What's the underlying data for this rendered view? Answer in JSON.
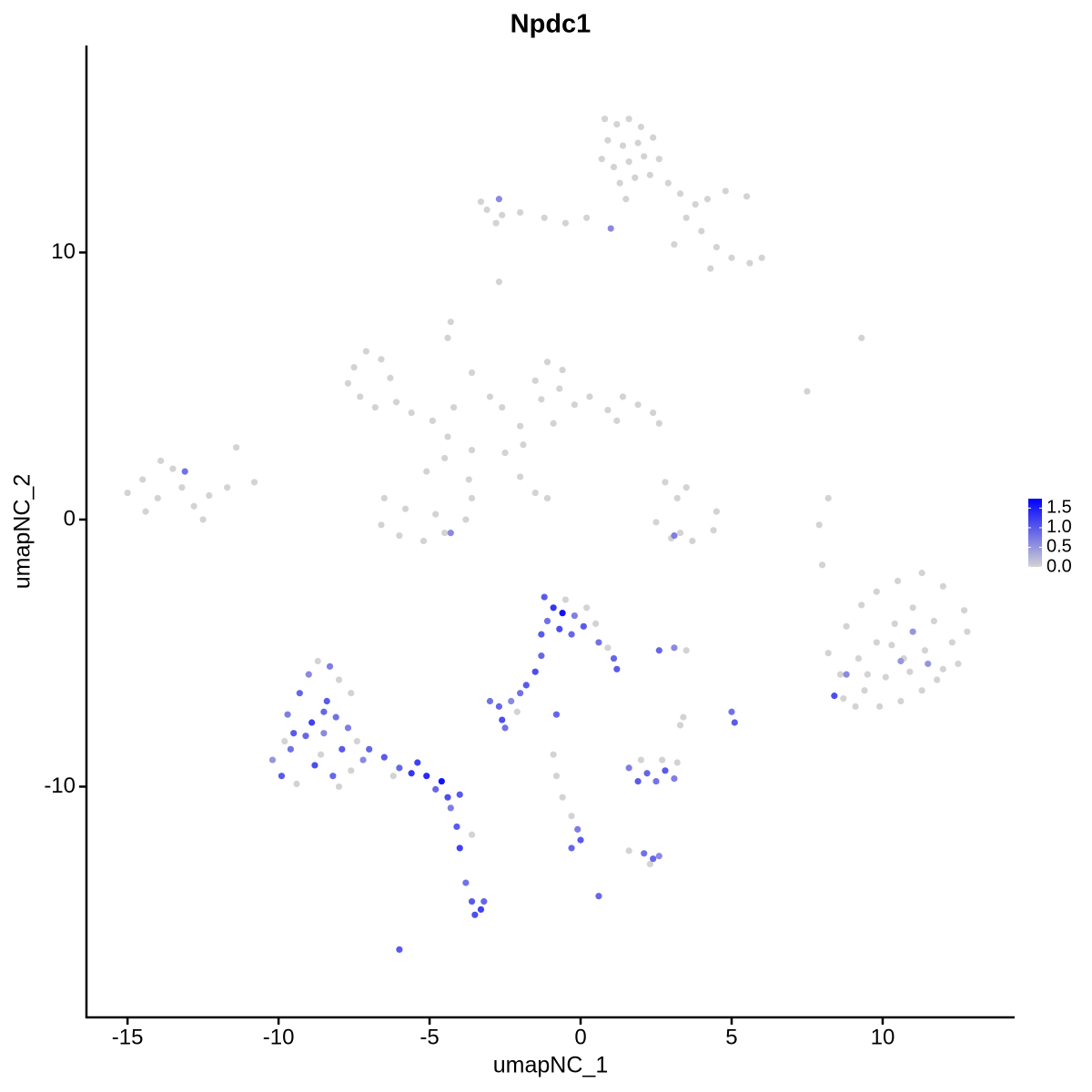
{
  "chart_data": {
    "type": "scatter",
    "title": "Npdc1",
    "x_label": "umapNC_1",
    "y_label": "umapNC_2",
    "xlim": [
      -16.36,
      14.37
    ],
    "ylim": [
      -18.64,
      17.75
    ],
    "xticks": [
      -15,
      -10,
      -5,
      0,
      5,
      10
    ],
    "yticks": [
      -10,
      0,
      10
    ],
    "colorbar": {
      "low_color": "#d3d3d3",
      "high_color": "#0000ff",
      "lim": [
        0,
        1.74
      ],
      "ticks": [
        {
          "value": 0,
          "label": "0.0"
        },
        {
          "value": 0.5,
          "label": "0.5"
        },
        {
          "value": 1,
          "label": "1.0"
        },
        {
          "value": 1.5,
          "label": "1.5"
        }
      ]
    },
    "x": [
      0.8,
      1.2,
      1.6,
      2.0,
      0.9,
      1.4,
      1.9,
      2.4,
      0.7,
      1.1,
      1.6,
      2.1,
      2.6,
      1.3,
      1.8,
      2.3,
      1.5,
      2.9,
      3.3,
      3.8,
      4.2,
      4.8,
      5.5,
      3.5,
      4.0,
      4.5,
      5.0,
      5.6,
      6.0,
      4.3,
      3.1,
      0.2,
      -0.5,
      -1.2,
      -2.0,
      -2.6,
      -3.1,
      -2.8,
      -2.7,
      -3.3,
      -2.7,
      1.0,
      -7.5,
      -7.1,
      -6.6,
      -7.7,
      -7.3,
      -6.8,
      -6.1,
      -6.3,
      -5.6,
      -4.9,
      -4.2,
      -4.4,
      -4.3,
      -3.6,
      -3.0,
      -2.6,
      -2.0,
      -1.5,
      -1.1,
      -0.6,
      -1.3,
      -0.7,
      -0.2,
      0.3,
      -0.9,
      0.9,
      1.4,
      1.9,
      2.4,
      2.6,
      1.2,
      -1.9,
      -2.5,
      -2.0,
      -1.5,
      -1.1,
      -3.6,
      -4.5,
      -5.1,
      -4.4,
      -6.5,
      -6.6,
      -6.0,
      -5.2,
      -4.5,
      -3.8,
      -3.6,
      -3.7,
      -5.8,
      -4.8,
      -4.3,
      2.5,
      3.0,
      3.7,
      4.4,
      4.5,
      3.3,
      3.2,
      3.5,
      2.8,
      3.1,
      -15.0,
      -14.5,
      -14.0,
      -13.5,
      -13.2,
      -12.8,
      -14.4,
      -13.9,
      -12.5,
      -12.3,
      -11.7,
      -11.4,
      -10.8,
      -13.1,
      9.3,
      7.5,
      8.2,
      7.9,
      8.0,
      8.2,
      8.8,
      9.3,
      9.8,
      10.5,
      11.3,
      12.0,
      12.7,
      8.6,
      9.2,
      9.8,
      10.4,
      11.0,
      11.7,
      12.3,
      12.8,
      8.7,
      9.4,
      10.1,
      10.7,
      11.4,
      12.0,
      12.5,
      9.1,
      9.9,
      10.6,
      11.3,
      11.8,
      10.3,
      9.5,
      10.9,
      11.0,
      10.6,
      11.5,
      8.8,
      8.4,
      -10.2,
      -9.9,
      -9.6,
      -9.4,
      -9.1,
      -8.8,
      -8.5,
      -8.2,
      -7.9,
      -7.6,
      -9.7,
      -9.3,
      -9.0,
      -8.7,
      -8.4,
      -8.1,
      -8.0,
      -7.7,
      -7.4,
      -7.2,
      -8.9,
      -8.6,
      -9.5,
      -8.3,
      -7.6,
      -9.8,
      -8.0,
      -8.5,
      -7.0,
      -6.5,
      -6.0,
      -5.6,
      -5.1,
      -4.8,
      -4.4,
      -4.0,
      -4.3,
      -6.2,
      -5.4,
      -4.6,
      -4.1,
      -4.0,
      -3.8,
      -3.6,
      -3.5,
      -3.3,
      -3.2,
      -3.6,
      -6.0,
      -1.2,
      -0.9,
      -0.5,
      -0.2,
      0.2,
      -1.1,
      -0.7,
      -0.3,
      0.1,
      0.5,
      -1.3,
      0.6,
      0.9,
      1.1,
      1.2,
      -1.3,
      -1.5,
      -1.8,
      -2.0,
      -0.6,
      -3.0,
      -2.7,
      -2.3,
      -2.1,
      -2.6,
      -2.5,
      -0.8,
      2.6,
      3.1,
      3.5,
      5.0,
      5.1,
      3.4,
      3.3,
      -0.9,
      -0.8,
      -0.6,
      -0.3,
      -0.1,
      0.0,
      -0.3,
      0.6,
      1.6,
      1.9,
      2.2,
      2.5,
      2.8,
      3.1,
      2.0,
      2.7,
      3.2,
      2.1,
      2.4,
      2.6,
      2.3,
      1.6
    ],
    "y": [
      15.0,
      14.8,
      15.0,
      14.7,
      14.2,
      14.0,
      14.1,
      14.3,
      13.5,
      13.2,
      13.4,
      13.6,
      13.5,
      12.6,
      12.8,
      12.9,
      12.0,
      12.6,
      12.2,
      11.8,
      12.0,
      12.3,
      12.1,
      11.3,
      10.8,
      10.2,
      9.8,
      9.6,
      9.8,
      9.4,
      10.3,
      11.3,
      11.1,
      11.3,
      11.5,
      11.4,
      11.6,
      11.1,
      8.9,
      11.9,
      12.0,
      10.9,
      5.7,
      6.3,
      6.0,
      5.1,
      4.6,
      4.2,
      4.4,
      5.3,
      4.0,
      3.7,
      4.2,
      6.8,
      7.4,
      5.5,
      4.6,
      4.2,
      3.5,
      5.2,
      5.9,
      5.6,
      4.5,
      4.9,
      4.3,
      4.6,
      3.6,
      4.1,
      4.6,
      4.3,
      4.0,
      3.6,
      3.7,
      2.8,
      2.5,
      1.6,
      1.0,
      0.8,
      2.6,
      2.3,
      1.8,
      3.1,
      0.8,
      -0.2,
      -0.6,
      -0.8,
      -0.5,
      0.0,
      0.8,
      1.5,
      0.4,
      0.2,
      -0.5,
      -0.1,
      -0.7,
      -0.8,
      -0.4,
      0.3,
      -0.5,
      0.8,
      1.2,
      1.4,
      -0.6,
      1.0,
      1.5,
      0.8,
      1.9,
      1.2,
      0.5,
      0.3,
      2.2,
      0.0,
      0.9,
      1.2,
      2.7,
      1.4,
      1.8,
      6.8,
      4.8,
      0.8,
      -0.2,
      -1.7,
      -5.0,
      -4.0,
      -3.2,
      -2.7,
      -2.3,
      -2.0,
      -2.5,
      -3.4,
      -5.8,
      -5.2,
      -4.6,
      -3.9,
      -3.3,
      -3.8,
      -4.6,
      -4.2,
      -6.7,
      -6.4,
      -5.9,
      -5.2,
      -4.9,
      -5.6,
      -5.4,
      -7.0,
      -7.0,
      -6.8,
      -6.4,
      -6.0,
      -4.7,
      -5.8,
      -5.7,
      -4.2,
      -5.3,
      -5.4,
      -5.8,
      -6.6,
      -9.0,
      -9.6,
      -8.6,
      -9.9,
      -8.1,
      -9.2,
      -8.0,
      -9.6,
      -8.6,
      -9.4,
      -7.3,
      -6.5,
      -5.8,
      -5.3,
      -6.8,
      -7.4,
      -6.0,
      -7.8,
      -8.3,
      -9.0,
      -7.6,
      -8.8,
      -8.0,
      -5.5,
      -6.5,
      -8.3,
      -10.0,
      -7.2,
      -8.6,
      -8.9,
      -9.3,
      -9.5,
      -9.6,
      -10.1,
      -10.4,
      -10.3,
      -10.8,
      -9.6,
      -9.1,
      -9.8,
      -11.5,
      -12.3,
      -13.6,
      -14.3,
      -14.8,
      -14.6,
      -14.3,
      -11.8,
      -16.1,
      -2.9,
      -3.3,
      -3.0,
      -3.6,
      -3.3,
      -3.8,
      -4.1,
      -4.3,
      -4.0,
      -3.9,
      -4.3,
      -4.6,
      -4.8,
      -5.2,
      -5.6,
      -5.1,
      -5.7,
      -6.2,
      -6.5,
      -3.5,
      -6.8,
      -7.0,
      -6.8,
      -7.2,
      -7.5,
      -7.8,
      -7.3,
      -4.9,
      -4.8,
      -4.9,
      -7.2,
      -7.6,
      -7.4,
      -7.7,
      -8.8,
      -9.6,
      -10.4,
      -11.1,
      -11.6,
      -12.0,
      -12.3,
      -14.1,
      -9.3,
      -9.8,
      -9.5,
      -9.8,
      -9.4,
      -9.7,
      -9.0,
      -9.0,
      -9.1,
      -12.5,
      -12.7,
      -12.6,
      -12.9,
      -12.4
    ],
    "values": [
      0,
      0,
      0,
      0,
      0,
      0,
      0,
      0,
      0,
      0,
      0,
      0,
      0,
      0,
      0,
      0,
      0,
      0,
      0,
      0,
      0,
      0,
      0,
      0,
      0,
      0,
      0,
      0,
      0,
      0,
      0,
      0,
      0,
      0,
      0,
      0,
      0,
      0,
      0,
      0,
      0.6,
      0.6,
      0,
      0,
      0,
      0,
      0,
      0,
      0,
      0,
      0,
      0,
      0,
      0,
      0,
      0,
      0,
      0,
      0,
      0,
      0,
      0,
      0,
      0,
      0,
      0,
      0,
      0,
      0,
      0,
      0,
      0,
      0,
      0,
      0,
      0,
      0,
      0,
      0,
      0,
      0,
      0,
      0,
      0,
      0,
      0,
      0,
      0,
      0,
      0,
      0,
      0,
      0.6,
      0,
      0,
      0,
      0,
      0,
      0,
      0,
      0,
      0,
      0.7,
      0,
      0,
      0,
      0,
      0,
      0,
      0,
      0,
      0,
      0,
      0,
      0,
      0,
      0.8,
      0,
      0,
      0,
      0,
      0,
      0,
      0,
      0,
      0,
      0,
      0,
      0,
      0,
      0,
      0,
      0,
      0,
      0,
      0,
      0,
      0,
      0,
      0,
      0,
      0,
      0,
      0,
      0,
      0,
      0,
      0,
      0,
      0,
      0,
      0,
      0,
      0.5,
      0.5,
      0.5,
      0.6,
      1.1,
      0.5,
      1.0,
      0.8,
      0,
      0.9,
      1.1,
      0.6,
      0.9,
      1.0,
      0,
      0.7,
      0.9,
      0.6,
      0,
      1.0,
      0.8,
      0,
      0.7,
      0,
      0.6,
      1.2,
      0,
      1.0,
      0.7,
      0,
      0,
      0,
      0.9,
      0.9,
      1.0,
      0.9,
      1.3,
      1.4,
      0.9,
      1.1,
      1.0,
      0.7,
      0,
      1.2,
      1.6,
      1.0,
      1.2,
      0.8,
      1.0,
      1.1,
      1.2,
      0.9,
      0,
      1.0,
      1.0,
      1.3,
      0,
      0.7,
      0,
      0.8,
      1.1,
      0.9,
      1.0,
      0,
      1.0,
      0.8,
      0,
      0.9,
      1.0,
      0.9,
      1.1,
      1.0,
      0.8,
      1.6,
      0.8,
      0.9,
      0.6,
      0,
      1.1,
      0.8,
      0.9,
      0.9,
      0.6,
      0,
      0.8,
      1.0,
      0,
      0,
      0,
      0,
      0,
      0,
      0.7,
      1.0,
      0.9,
      0.9,
      0.7,
      1.0,
      0.9,
      0.8,
      1.0,
      0.7,
      0,
      0,
      0,
      0.8,
      0.9,
      0.6,
      0,
      0
    ]
  }
}
